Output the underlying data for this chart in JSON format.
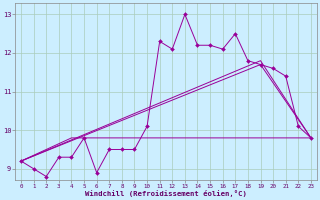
{
  "bg_color": "#cceeff",
  "grid_color": "#aaccbb",
  "line_color": "#990099",
  "xlim": [
    -0.5,
    23.5
  ],
  "ylim": [
    8.7,
    13.3
  ],
  "xtick_labels": [
    "0",
    "1",
    "2",
    "3",
    "4",
    "5",
    "6",
    "7",
    "8",
    "9",
    "10",
    "11",
    "12",
    "13",
    "14",
    "15",
    "16",
    "17",
    "18",
    "19",
    "20",
    "21",
    "22",
    "23"
  ],
  "ytick_labels": [
    "9",
    "10",
    "11",
    "12",
    "13"
  ],
  "ytick_vals": [
    9,
    10,
    11,
    12,
    13
  ],
  "series1_x": [
    0,
    1,
    2,
    3,
    4,
    5,
    6,
    7,
    8,
    9,
    10,
    11,
    12,
    13,
    14,
    15,
    16,
    17,
    18,
    19,
    20,
    21,
    22,
    23
  ],
  "series1_y": [
    9.2,
    9.0,
    8.8,
    9.3,
    9.3,
    9.8,
    8.9,
    9.5,
    9.5,
    9.5,
    10.1,
    12.3,
    12.1,
    13.0,
    12.2,
    12.2,
    12.1,
    12.5,
    11.8,
    11.7,
    11.6,
    11.4,
    10.1,
    9.8
  ],
  "series2_x": [
    0,
    4,
    23
  ],
  "series2_y": [
    9.2,
    9.8,
    9.8
  ],
  "series3_x": [
    0,
    19,
    23
  ],
  "series3_y": [
    9.2,
    11.7,
    9.8
  ],
  "series4_x": [
    0,
    19,
    23
  ],
  "series4_y": [
    9.2,
    11.8,
    9.8
  ],
  "xlabel": "Windchill (Refroidissement éolien,°C)",
  "xlabel_color": "#660066",
  "tick_color": "#660066"
}
